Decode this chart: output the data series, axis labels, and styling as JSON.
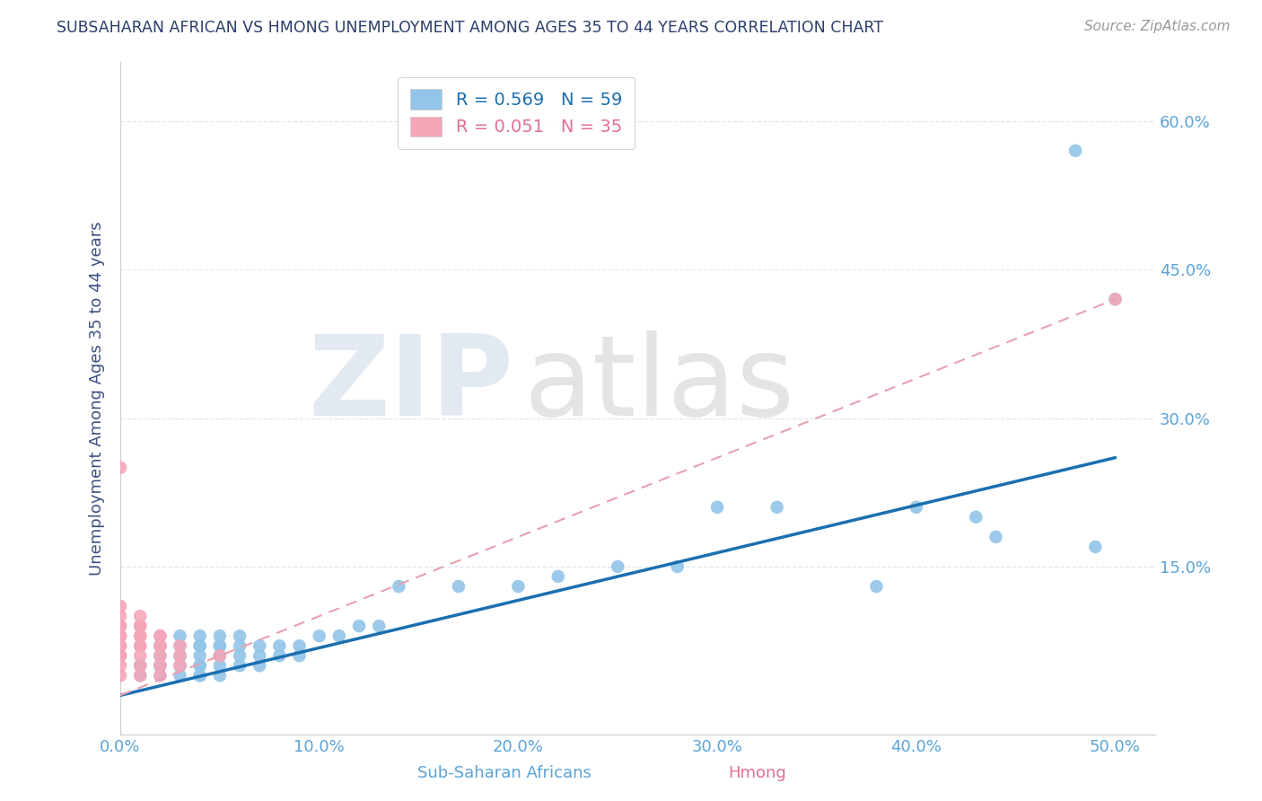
{
  "title": "SUBSAHARAN AFRICAN VS HMONG UNEMPLOYMENT AMONG AGES 35 TO 44 YEARS CORRELATION CHART",
  "source": "Source: ZipAtlas.com",
  "ylabel": "Unemployment Among Ages 35 to 44 years",
  "xlim": [
    0.0,
    0.52
  ],
  "ylim": [
    -0.02,
    0.66
  ],
  "xticks": [
    0.0,
    0.1,
    0.2,
    0.3,
    0.4,
    0.5
  ],
  "xticklabels": [
    "0.0%",
    "10.0%",
    "20.0%",
    "30.0%",
    "40.0%",
    "50.0%"
  ],
  "yticks": [
    0.15,
    0.3,
    0.45,
    0.6
  ],
  "yticklabels": [
    "15.0%",
    "30.0%",
    "45.0%",
    "60.0%"
  ],
  "legend_r_blue": "R = 0.569",
  "legend_n_blue": "N = 59",
  "legend_r_pink": "R = 0.051",
  "legend_n_pink": "N = 35",
  "blue_color": "#92c5e8",
  "pink_color": "#f4a6b8",
  "blue_line_color": "#1a6faf",
  "pink_line_color": "#e8a0b0",
  "title_color": "#2c3e6b",
  "axis_label_color": "#3a5080",
  "tick_color_blue": "#5ba3d9",
  "tick_color_x": "#5ba3d9",
  "grid_color": "#dde8f0",
  "blue_line_y0": 0.02,
  "blue_line_y1": 0.26,
  "pink_line_y0": 0.02,
  "pink_line_y1": 0.42,
  "blue_scatter_x": [
    0.01,
    0.01,
    0.02,
    0.02,
    0.02,
    0.02,
    0.02,
    0.02,
    0.03,
    0.03,
    0.03,
    0.03,
    0.03,
    0.03,
    0.03,
    0.04,
    0.04,
    0.04,
    0.04,
    0.04,
    0.04,
    0.04,
    0.04,
    0.05,
    0.05,
    0.05,
    0.05,
    0.05,
    0.05,
    0.06,
    0.06,
    0.06,
    0.06,
    0.07,
    0.07,
    0.07,
    0.08,
    0.08,
    0.09,
    0.09,
    0.1,
    0.11,
    0.12,
    0.13,
    0.14,
    0.17,
    0.2,
    0.22,
    0.25,
    0.28,
    0.3,
    0.33,
    0.38,
    0.4,
    0.43,
    0.44,
    0.48,
    0.49,
    0.5
  ],
  "blue_scatter_y": [
    0.04,
    0.05,
    0.04,
    0.05,
    0.05,
    0.06,
    0.07,
    0.07,
    0.04,
    0.05,
    0.05,
    0.06,
    0.06,
    0.07,
    0.08,
    0.04,
    0.04,
    0.05,
    0.05,
    0.06,
    0.07,
    0.07,
    0.08,
    0.04,
    0.05,
    0.06,
    0.07,
    0.07,
    0.08,
    0.05,
    0.06,
    0.07,
    0.08,
    0.05,
    0.06,
    0.07,
    0.06,
    0.07,
    0.06,
    0.07,
    0.08,
    0.08,
    0.09,
    0.09,
    0.13,
    0.13,
    0.13,
    0.14,
    0.15,
    0.15,
    0.21,
    0.21,
    0.13,
    0.21,
    0.2,
    0.18,
    0.57,
    0.17,
    0.42
  ],
  "pink_scatter_x": [
    0.0,
    0.0,
    0.0,
    0.0,
    0.0,
    0.0,
    0.0,
    0.0,
    0.0,
    0.0,
    0.0,
    0.0,
    0.0,
    0.01,
    0.01,
    0.01,
    0.01,
    0.01,
    0.01,
    0.01,
    0.01,
    0.01,
    0.01,
    0.02,
    0.02,
    0.02,
    0.02,
    0.02,
    0.02,
    0.02,
    0.03,
    0.03,
    0.03,
    0.05,
    0.5
  ],
  "pink_scatter_y": [
    0.04,
    0.05,
    0.06,
    0.06,
    0.07,
    0.07,
    0.08,
    0.08,
    0.09,
    0.09,
    0.1,
    0.11,
    0.25,
    0.04,
    0.05,
    0.06,
    0.07,
    0.07,
    0.08,
    0.08,
    0.09,
    0.09,
    0.1,
    0.04,
    0.05,
    0.06,
    0.07,
    0.07,
    0.08,
    0.08,
    0.05,
    0.06,
    0.07,
    0.06,
    0.42
  ]
}
